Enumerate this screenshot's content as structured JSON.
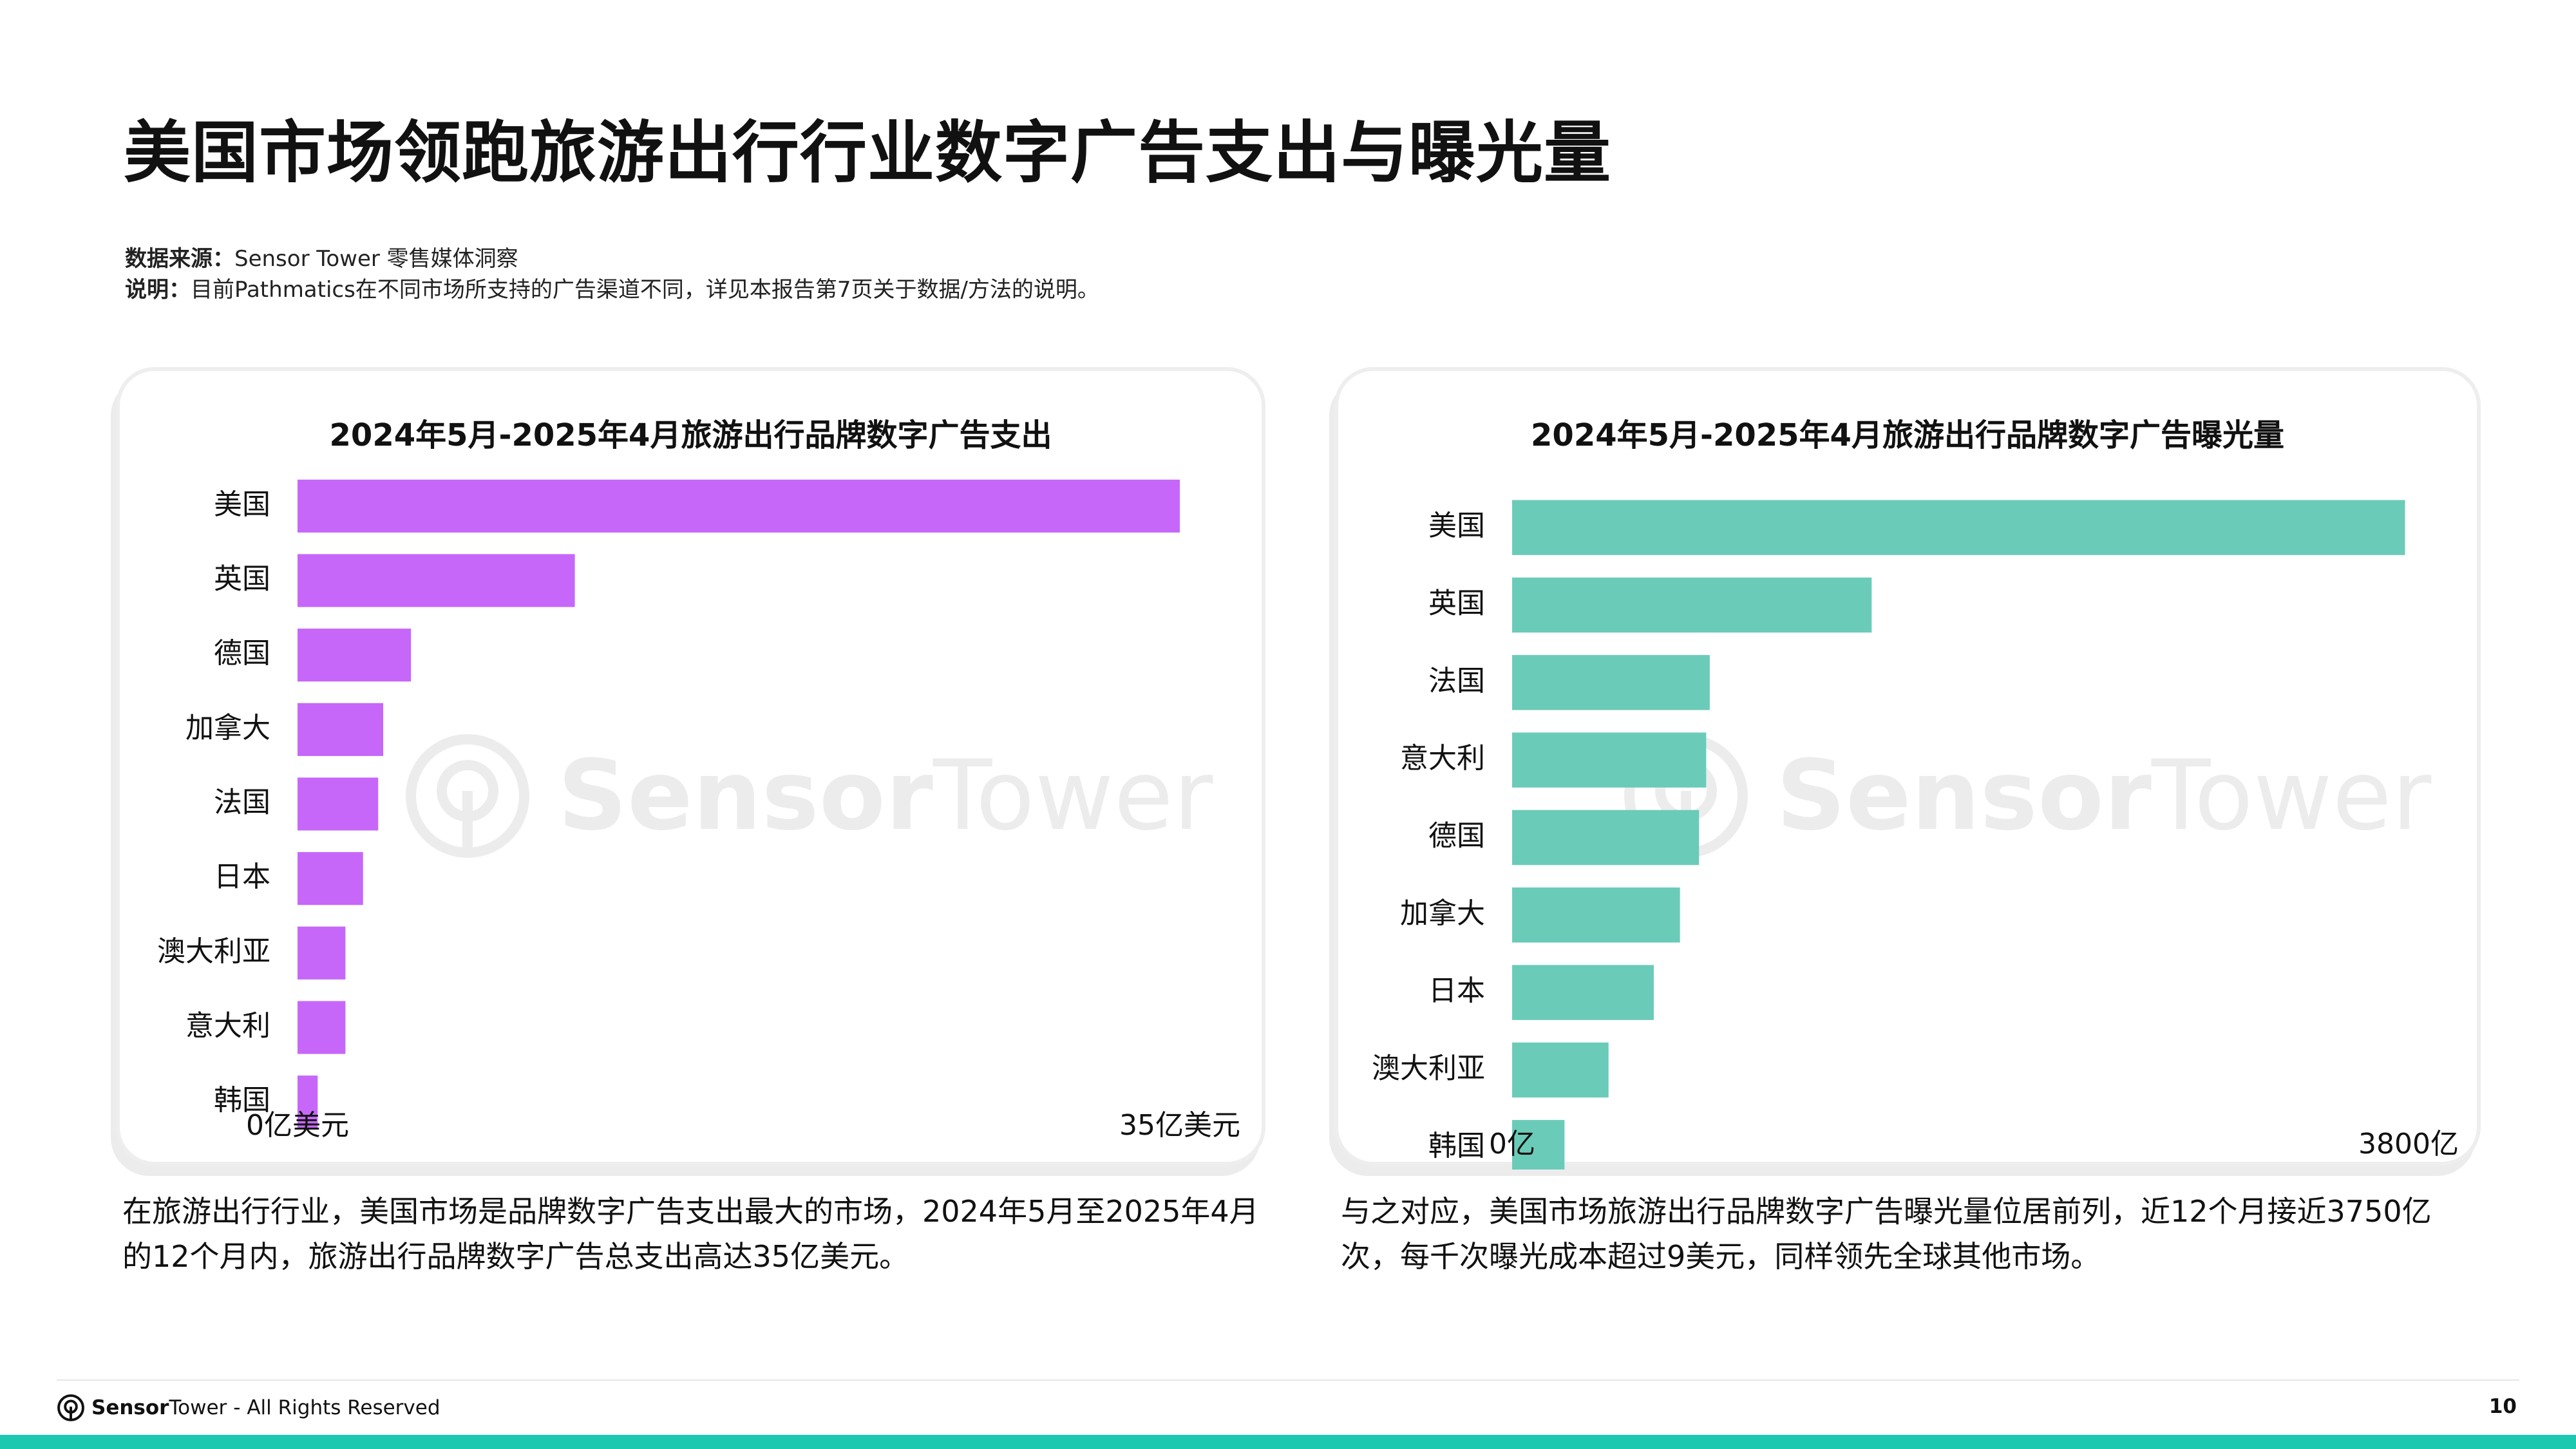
{
  "page": {
    "title": "美国市场领跑旅游出行行业数字广告支出与曝光量",
    "source_label": "数据来源：",
    "source_value": "Sensor Tower  零售媒体洞察",
    "note_label": "说明：",
    "note_value": "目前Pathmatics在不同市场所支持的广告渠道不同，详见本报告第7页关于数据/方法的说明。",
    "page_number": "10"
  },
  "watermark": {
    "brand_bold": "Sensor",
    "brand_thin": "Tower"
  },
  "captions": {
    "left": "在旅游出行行业，美国市场是品牌数字广告支出最大的市场，2024年5月至2025年4月的12个月内，旅游出行品牌数字广告总支出高达35亿美元。",
    "right": "与之对应，美国市场旅游出行品牌数字广告曝光量位居前列，近12个月接近3750亿次，每千次曝光成本超过9美元，同样领先全球其他市场。"
  },
  "footer": {
    "brand_bold": "Sensor",
    "brand_thin": "Tower",
    "rights": " - All Rights Reserved"
  },
  "colors": {
    "spend_bar": "#C667F9",
    "impression_bar": "#6BCBB9",
    "bottom_bar": "#1CC8B0"
  },
  "chart_data": [
    {
      "type": "bar",
      "orientation": "horizontal",
      "title": "2024年5月-2025年4月旅游出行品牌数字广告支出",
      "categories": [
        "美国",
        "英国",
        "德国",
        "加拿大",
        "法国",
        "日本",
        "澳大利亚",
        "意大利",
        "韩国"
      ],
      "values": [
        35,
        11,
        4.5,
        3.4,
        3.2,
        2.6,
        1.9,
        1.9,
        0.8
      ],
      "unit": "亿美元",
      "xlim": [
        0,
        35
      ],
      "xtick_labels": [
        "0亿美元",
        "35亿美元"
      ],
      "grid": false,
      "legend": "none"
    },
    {
      "type": "bar",
      "orientation": "horizontal",
      "title": "2024年5月-2025年4月旅游出行品牌数字广告曝光量",
      "categories": [
        "美国",
        "英国",
        "法国",
        "意大利",
        "德国",
        "加拿大",
        "日本",
        "澳大利亚",
        "韩国"
      ],
      "values": [
        3750,
        1510,
        830,
        815,
        785,
        705,
        595,
        405,
        220
      ],
      "unit": "亿",
      "xlim": [
        0,
        3800
      ],
      "xtick_labels": [
        "0亿",
        "3800亿"
      ],
      "grid": false,
      "legend": "none"
    }
  ]
}
